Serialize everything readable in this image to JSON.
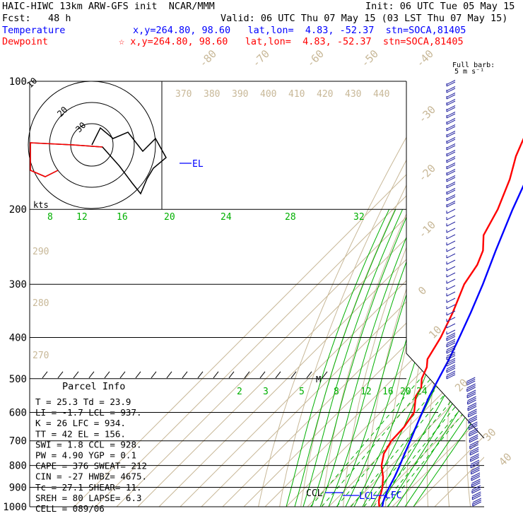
{
  "header": {
    "line1_left": "HAIC-HIWC 13km ARW-GFS init  NCAR/MMM",
    "line1_right": "Init: 06 UTC Tue 05 May 15",
    "line2_left": "Fcst:   48 h",
    "line2_right": "Valid: 06 UTC Thu 07 May 15 (03 LST Thu 07 May 15)",
    "temperature_label": "Temperature",
    "temperature_info": "x,y=264.80, 98.60   lat,lon=  4.83, -52.37  stn=SOCA,81405",
    "dewpoint_label": "Dewpoint",
    "dewpoint_info": "☆ x,y=264.80, 98.60   lat,lon=  4.83, -52.37  stn=SOCA,81405"
  },
  "colors": {
    "temperature": "#0000ff",
    "dewpoint": "#ff0000",
    "isotherm": "#c8b898",
    "mixing_ratio": "#00b000",
    "axes": "#000000",
    "barbs": "#2020a0"
  },
  "chart_data": {
    "type": "line",
    "y_scale": "log-pressure",
    "ylim": [
      1000,
      100
    ],
    "pressure_ticks": [
      "100",
      "200",
      "300",
      "400",
      "500",
      "600",
      "700",
      "800",
      "900",
      "1000"
    ],
    "isotherm_labels": [
      "-80",
      "-70",
      "-60",
      "-50",
      "-40",
      "-30",
      "-20",
      "-10",
      "0",
      "10",
      "20",
      "30",
      "40"
    ],
    "theta_labels_top": [
      "370",
      "380",
      "390",
      "400",
      "410",
      "420",
      "430",
      "440"
    ],
    "theta_labels_side": [
      "290",
      "280",
      "270"
    ],
    "mixing_ratio_labels_upper": [
      "8",
      "12",
      "16",
      "20",
      "24",
      "28",
      "32"
    ],
    "mixing_ratio_labels_lower": [
      "2",
      "3",
      "5",
      "8",
      "12",
      "16",
      "20",
      "24"
    ],
    "series": [
      {
        "name": "Temperature",
        "color": "#0000ff",
        "points": [
          [
            1000,
            25.3
          ],
          [
            975,
            23.5
          ],
          [
            950,
            22.0
          ],
          [
            925,
            20.6
          ],
          [
            900,
            19.4
          ],
          [
            850,
            17.0
          ],
          [
            800,
            14.1
          ],
          [
            750,
            10.8
          ],
          [
            700,
            7.4
          ],
          [
            650,
            3.6
          ],
          [
            600,
            -0.4
          ],
          [
            550,
            -4.6
          ],
          [
            500,
            -8.5
          ],
          [
            450,
            -12.8
          ],
          [
            400,
            -18.2
          ],
          [
            350,
            -24.5
          ],
          [
            300,
            -32.2
          ],
          [
            250,
            -42.0
          ],
          [
            200,
            -53.5
          ],
          [
            175,
            -59.8
          ],
          [
            150,
            -66.4
          ],
          [
            130,
            -72.8
          ],
          [
            115,
            -76.8
          ],
          [
            100,
            -76.5
          ]
        ]
      },
      {
        "name": "Dewpoint",
        "color": "#ff0000",
        "points": [
          [
            1000,
            23.9
          ],
          [
            975,
            21.5
          ],
          [
            950,
            19.5
          ],
          [
            925,
            18.0
          ],
          [
            900,
            16.2
          ],
          [
            850,
            11.5
          ],
          [
            800,
            5.5
          ],
          [
            750,
            1.0
          ],
          [
            700,
            -1.5
          ],
          [
            650,
            -2.0
          ],
          [
            600,
            -4.2
          ],
          [
            550,
            -11.0
          ],
          [
            525,
            -12.5
          ],
          [
            500,
            -16.5
          ],
          [
            470,
            -19.5
          ],
          [
            450,
            -23.0
          ],
          [
            400,
            -27.0
          ],
          [
            350,
            -33.0
          ],
          [
            300,
            -41.0
          ],
          [
            270,
            -44.0
          ],
          [
            250,
            -48.0
          ],
          [
            230,
            -55.0
          ],
          [
            200,
            -60.5
          ],
          [
            170,
            -69.0
          ],
          [
            150,
            -77.0
          ],
          [
            125,
            -86.0
          ],
          [
            100,
            -93.0
          ]
        ]
      }
    ],
    "annotations": {
      "el": "EL",
      "ccl": "CCL",
      "lcl": "LCL",
      "lfc": "LFC",
      "m_marker": "M"
    },
    "wind_profile": {
      "unit": "kts",
      "barb_label_line1": "Full barb:",
      "barb_label_line2": "5 m s⁻¹"
    },
    "hodograph": {
      "ring_labels": [
        "30",
        "20",
        "10"
      ],
      "points": [
        [
          0,
          0
        ],
        [
          4,
          8
        ],
        [
          10,
          3
        ],
        [
          17,
          6
        ],
        [
          24,
          -3
        ],
        [
          30,
          3
        ],
        [
          35,
          -6
        ],
        [
          29,
          -11
        ],
        [
          26,
          -16
        ],
        [
          23,
          -23
        ],
        [
          19,
          -18
        ],
        [
          13,
          -10
        ],
        [
          5,
          -1
        ],
        [
          -9,
          0
        ],
        [
          -29,
          1
        ],
        [
          -29,
          -12
        ],
        [
          -22,
          -15
        ],
        [
          -16,
          -12
        ]
      ]
    }
  },
  "parcel_info": {
    "title": "Parcel Info",
    "rows": [
      "T   =    25.3  Td =  23.9",
      "LI  =    -1.7  LCL =  937.",
      "K   =     26   LFC =  934.",
      "TT  =     42   EL  =  156.",
      "SWI =    1.8   CCL =  928.",
      "PW  =   4.90   YGP =   0.1",
      "CAPE =   376   SWEAT=  212",
      "CIN  =   -27   HWBZ= 4675.",
      "Tc  =   27.1   SHEAR=  11.",
      "SREH =    80   LAPSE=  6.3",
      "CELL = 089/06"
    ]
  }
}
